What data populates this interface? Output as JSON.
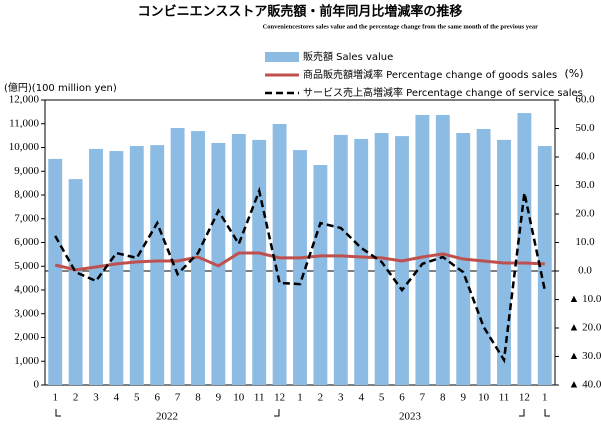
{
  "chart_data": {
    "type": "bar_line",
    "title": "コンビニエンスストア販売額・前年同月比増減率の推移",
    "subtitle": "Conveniencestores sales value and the percentage change from the same month of the previous year",
    "y_axis_label": "(億円)(100 million yen)",
    "y2_axis_label": "(%)",
    "categories": [
      "1",
      "2",
      "3",
      "4",
      "5",
      "6",
      "7",
      "8",
      "9",
      "10",
      "11",
      "12",
      "1",
      "2",
      "3",
      "4",
      "5",
      "6",
      "7",
      "8",
      "9",
      "10",
      "11",
      "12",
      "1"
    ],
    "year_labels": [
      "2022",
      "2023"
    ],
    "ylim": [
      0,
      12000
    ],
    "yticks": [
      0,
      {
        "value": 1000,
        "label": "1,000"
      },
      {
        "value": 2000,
        "label": "2,000"
      },
      {
        "value": 3000,
        "label": "3,000"
      },
      {
        "value": 4000,
        "label": "4,000"
      },
      {
        "value": 5000,
        "label": "5,000"
      },
      {
        "value": 6000,
        "label": "6,000"
      },
      {
        "value": 7000,
        "label": "7,000"
      },
      {
        "value": 8000,
        "label": "8,000"
      },
      {
        "value": 9000,
        "label": "9,000"
      },
      {
        "value": 10000,
        "label": "10,000"
      },
      {
        "value": 11000,
        "label": "11,000"
      },
      {
        "value": 12000,
        "label": "12,000"
      }
    ],
    "y2lim": [
      -40,
      60
    ],
    "y2ticks": [
      {
        "value": -40,
        "label": "▲ 40.0"
      },
      {
        "value": -30,
        "label": "▲ 30.0"
      },
      {
        "value": -20,
        "label": "▲ 20.0"
      },
      {
        "value": -10,
        "label": "▲ 10.0"
      },
      {
        "value": 0,
        "label": "0.0"
      },
      {
        "value": 10,
        "label": "10.0"
      },
      {
        "value": 20,
        "label": "20.0"
      },
      {
        "value": 30,
        "label": "30.0"
      },
      {
        "value": 40,
        "label": "40.0"
      },
      {
        "value": 50,
        "label": "50.0"
      },
      {
        "value": 60,
        "label": "60.0"
      }
    ],
    "series": [
      {
        "name": "販売額 Sales value",
        "kind": "bar",
        "color": "#8cbbe3",
        "axis": "y",
        "values": [
          9520,
          8670,
          9940,
          9850,
          10060,
          10100,
          10820,
          10690,
          10190,
          10570,
          10320,
          10990,
          9890,
          9260,
          10530,
          10360,
          10610,
          10480,
          11370,
          11370,
          10610,
          10780,
          10320,
          11450,
          10060
        ]
      },
      {
        "name": "商品販売額増減率 Percentage change of goods sales",
        "kind": "line",
        "color": "#c0504d",
        "axis": "y2",
        "values": [
          2.1,
          0.4,
          1.4,
          2.5,
          3.2,
          3.5,
          3.5,
          4.9,
          1.8,
          6.3,
          6.3,
          4.6,
          4.6,
          5.3,
          5.3,
          4.9,
          4.6,
          3.5,
          4.9,
          6.0,
          4.2,
          3.5,
          2.8,
          2.8,
          2.5
        ]
      },
      {
        "name": "サービス売上高増減率 Percentage change of service sales",
        "kind": "dashed",
        "color": "#000000",
        "axis": "y2",
        "values": [
          12.3,
          -0.4,
          -3.5,
          6.3,
          4.6,
          16.8,
          -1.1,
          6.3,
          21.1,
          9.5,
          28.1,
          -4.2,
          -4.6,
          16.8,
          15.1,
          8.1,
          3.2,
          -6.7,
          2.5,
          4.9,
          -0.4,
          -19.6,
          -31.2,
          27.4,
          -6.7
        ]
      }
    ]
  }
}
